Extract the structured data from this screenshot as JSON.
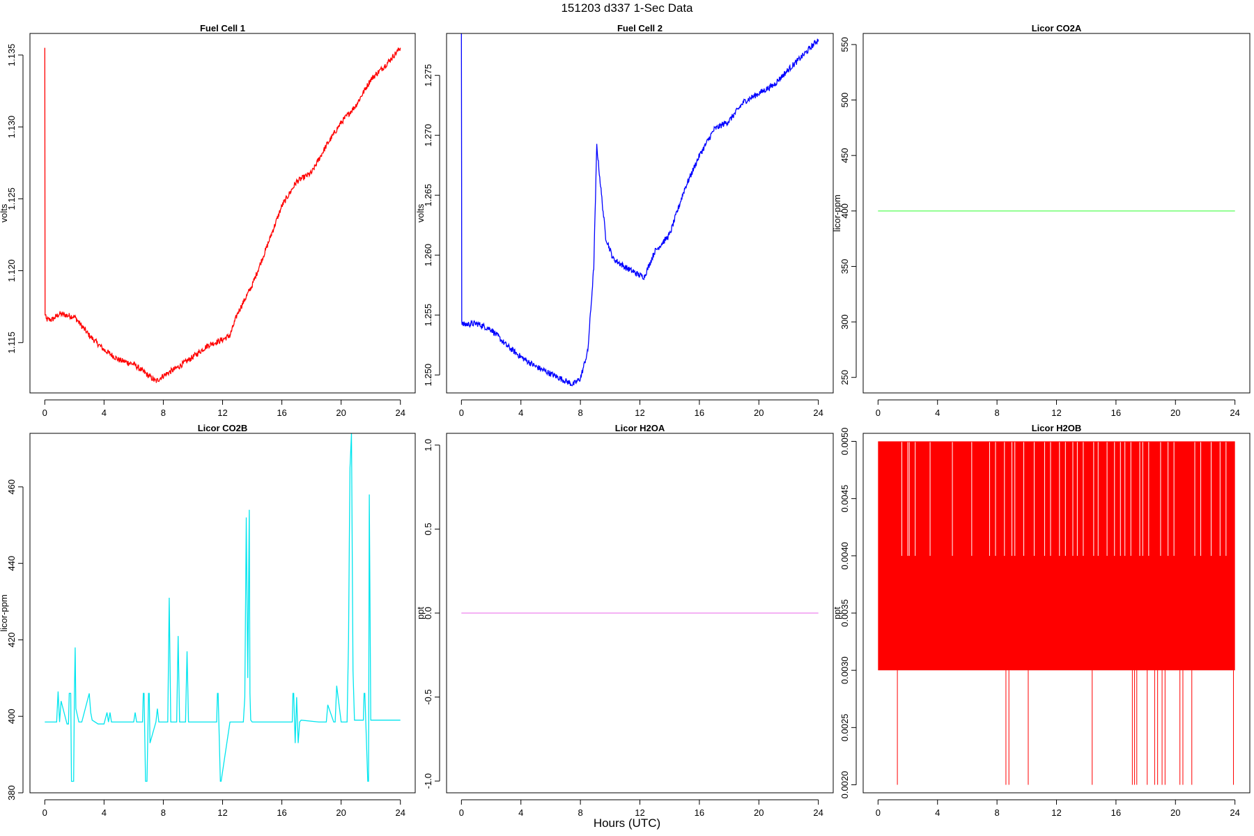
{
  "title": "151203   d337   1-Sec Data",
  "xlabel": "Hours (UTC)",
  "chart_data": [
    {
      "type": "line",
      "title": "Fuel Cell 1",
      "ylabel": "volts",
      "color": "#ff0000",
      "xlim": [
        -1,
        25
      ],
      "ylim": [
        1.1115,
        1.1365
      ],
      "x_ticks": [
        "0",
        "4",
        "8",
        "12",
        "16",
        "20",
        "24"
      ],
      "y_ticks": [
        "1.115",
        "1.120",
        "1.125",
        "1.130",
        "1.135"
      ],
      "x": [
        0,
        0.02,
        0.1,
        0.5,
        1,
        2,
        3,
        4,
        5,
        6,
        7,
        7.5,
        8,
        9,
        10,
        11,
        12,
        12.5,
        13,
        14,
        15,
        16,
        17,
        18,
        19,
        20,
        21,
        22,
        23,
        24
      ],
      "y": [
        1.1355,
        1.117,
        1.1166,
        1.1166,
        1.117,
        1.1168,
        1.1155,
        1.1145,
        1.1138,
        1.1135,
        1.1127,
        1.1123,
        1.1127,
        1.1133,
        1.114,
        1.1148,
        1.1152,
        1.1155,
        1.117,
        1.119,
        1.1217,
        1.1245,
        1.1262,
        1.1268,
        1.1287,
        1.1303,
        1.1315,
        1.1333,
        1.1343,
        1.1355
      ],
      "noise": 0.0004
    },
    {
      "type": "line",
      "title": "Fuel Cell 2",
      "ylabel": "volts",
      "color": "#0000ff",
      "xlim": [
        -1,
        25
      ],
      "ylim": [
        1.2485,
        1.2785
      ],
      "x_ticks": [
        "0",
        "4",
        "8",
        "12",
        "16",
        "20",
        "24"
      ],
      "y_ticks": [
        "1.250",
        "1.255",
        "1.260",
        "1.265",
        "1.270",
        "1.275"
      ],
      "x": [
        0,
        0.02,
        0.1,
        1,
        2,
        3,
        4,
        5,
        6,
        7,
        7.5,
        8,
        8.5,
        8.9,
        9.1,
        9.3,
        9.7,
        10.2,
        11,
        12,
        12.3,
        13,
        14,
        15,
        16,
        17,
        18,
        19,
        20,
        21,
        22,
        23,
        24
      ],
      "y": [
        1.2785,
        1.2545,
        1.2542,
        1.2543,
        1.2538,
        1.2525,
        1.2515,
        1.2507,
        1.2501,
        1.2495,
        1.2492,
        1.2497,
        1.252,
        1.259,
        1.2692,
        1.2665,
        1.2615,
        1.2597,
        1.259,
        1.2583,
        1.2582,
        1.2603,
        1.2617,
        1.2655,
        1.2683,
        1.2705,
        1.2712,
        1.2728,
        1.2735,
        1.2742,
        1.2755,
        1.2767,
        1.278
      ],
      "noise": 0.0005
    },
    {
      "type": "line",
      "title": "Licor CO2A",
      "ylabel": "licor-ppm",
      "color": "#66ff66",
      "xlim": [
        -1,
        25
      ],
      "ylim": [
        236,
        560
      ],
      "x_ticks": [
        "0",
        "4",
        "8",
        "12",
        "16",
        "20",
        "24"
      ],
      "y_ticks": [
        "250",
        "300",
        "350",
        "400",
        "450",
        "500",
        "550"
      ],
      "x": [
        0,
        24
      ],
      "y": [
        400,
        400
      ]
    },
    {
      "type": "line",
      "title": "Licor CO2B",
      "ylabel": "licor-ppm",
      "color": "#00e5ee",
      "xlim": [
        -1,
        25
      ],
      "ylim": [
        380,
        474
      ],
      "x_ticks": [
        "0",
        "4",
        "8",
        "12",
        "16",
        "20",
        "24"
      ],
      "y_ticks": [
        "380",
        "400",
        "420",
        "440",
        "460"
      ],
      "x": [
        0,
        0.8,
        0.9,
        1.0,
        1.1,
        1.5,
        1.6,
        1.65,
        1.75,
        1.8,
        1.95,
        2.0,
        2.05,
        2.1,
        2.3,
        2.5,
        3.0,
        3.1,
        3.2,
        3.6,
        4.0,
        4.2,
        4.3,
        4.4,
        4.5,
        6.0,
        6.1,
        6.2,
        6.6,
        6.65,
        6.7,
        6.8,
        6.9,
        7.0,
        7.05,
        7.1,
        7.5,
        7.6,
        7.7,
        8.3,
        8.4,
        8.5,
        8.9,
        9.0,
        9.1,
        9.5,
        9.6,
        9.7,
        11.6,
        11.65,
        11.7,
        11.85,
        11.9,
        12.5,
        13.4,
        13.5,
        13.6,
        13.7,
        13.8,
        13.85,
        13.9,
        14.0,
        14.1,
        16.7,
        16.75,
        16.8,
        16.9,
        17.0,
        17.1,
        17.2,
        17.3,
        18.5,
        19.0,
        19.1,
        19.5,
        19.6,
        19.7,
        20.0,
        20.4,
        20.5,
        20.55,
        20.6,
        20.7,
        20.8,
        20.9,
        21.0,
        21.5,
        21.55,
        21.6,
        21.8,
        21.85,
        21.9,
        22.0,
        22.1,
        23.0,
        24
      ],
      "y": [
        398.5,
        398.5,
        406.5,
        398.5,
        404,
        398,
        398,
        406,
        406,
        383,
        383,
        406,
        418,
        402,
        398.5,
        398.5,
        406,
        401,
        399,
        398,
        398,
        401,
        398.5,
        401,
        398.5,
        398.5,
        401,
        398.5,
        398.5,
        406,
        406,
        383,
        383,
        406,
        406,
        393,
        398.5,
        402,
        398.5,
        398.5,
        431,
        398.5,
        398.5,
        421,
        398.5,
        398.5,
        417,
        398.5,
        398.5,
        406,
        406,
        383,
        383,
        398.5,
        398.5,
        405,
        452,
        410,
        454,
        406,
        399,
        398.5,
        398.5,
        398.5,
        406,
        406,
        393,
        405,
        393,
        398.5,
        399,
        398.5,
        398.5,
        403,
        398.5,
        398.5,
        408,
        398.5,
        398.5,
        420,
        445,
        465,
        474,
        412,
        399,
        399,
        399,
        406,
        406,
        383,
        383,
        458,
        399,
        399,
        399,
        399
      ]
    },
    {
      "type": "line",
      "title": "Licor H2OA",
      "ylabel": "ppt",
      "color": "#ee82ee",
      "xlim": [
        -1,
        25
      ],
      "ylim": [
        -1.07,
        1.07
      ],
      "x_ticks": [
        "0",
        "4",
        "8",
        "12",
        "16",
        "20",
        "24"
      ],
      "y_ticks": [
        "-1.0",
        "-0.5",
        "0.0",
        "0.5",
        "1.0"
      ],
      "x": [
        0,
        24
      ],
      "y": [
        0,
        0
      ]
    },
    {
      "type": "area",
      "title": "Licor H2OB",
      "ylabel": "ppt",
      "color": "#ff0000",
      "xlim": [
        -1,
        25
      ],
      "ylim": [
        0.00193,
        0.00507
      ],
      "x_ticks": [
        "0",
        "4",
        "8",
        "12",
        "16",
        "20",
        "24"
      ],
      "y_ticks": [
        "0.0020",
        "0.0025",
        "0.0030",
        "0.0035",
        "0.0040",
        "0.0045",
        "0.0050"
      ],
      "band": [
        0.003,
        0.005
      ],
      "drops_to": 0.002,
      "drop_x": [
        1.3,
        8.6,
        8.8,
        10.1,
        14.4,
        17.1,
        17.25,
        17.4,
        18.1,
        18.6,
        18.8,
        19.1,
        19.3,
        20.3,
        20.5,
        21.1,
        23.9
      ],
      "gap_to": 0.004,
      "gap_x": [
        1.6,
        2.0,
        2.1,
        2.5,
        3.5,
        5.0,
        6.3,
        7.5,
        7.9,
        8.5,
        9.0,
        9.2,
        9.8,
        10.5,
        11.2,
        11.6,
        12.2,
        12.6,
        13.1,
        13.4,
        13.8,
        14.5,
        14.8,
        15.4,
        15.9,
        16.3,
        16.6,
        17.0,
        17.6,
        17.8,
        18.2,
        19.0,
        19.5,
        19.9,
        21.3,
        21.7,
        22.4,
        23.0,
        23.4
      ]
    }
  ]
}
